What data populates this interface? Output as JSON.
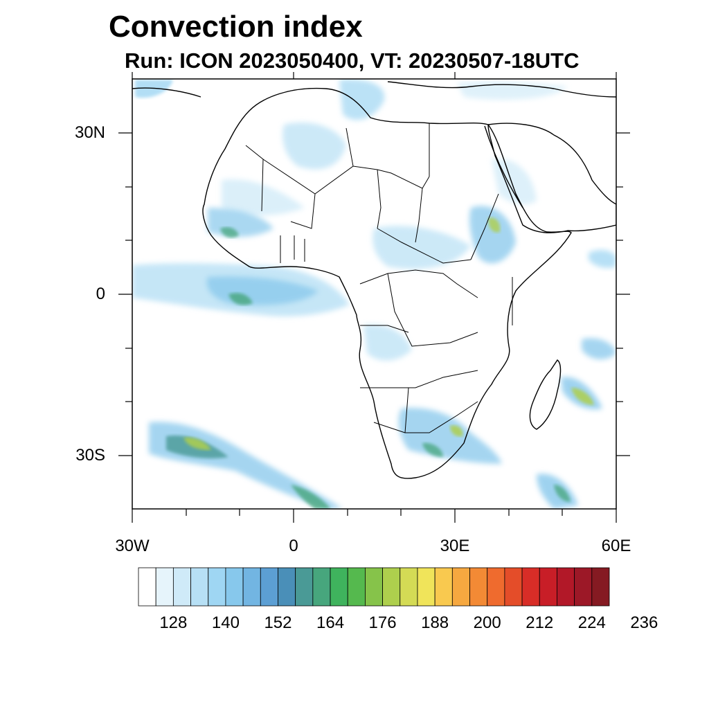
{
  "header": {
    "title": "Convection index",
    "subtitle": "Run: ICON 2023050400,  VT: 20230507-18UTC"
  },
  "map": {
    "lat_labels": [
      "30N",
      "0",
      "30S"
    ],
    "lon_labels": [
      "30W",
      "0",
      "30E",
      "60E"
    ],
    "extent": {
      "lon": [
        -30,
        60
      ],
      "lat": [
        -40,
        40
      ]
    }
  },
  "colorbar": {
    "colors": [
      "#ffffff",
      "#e6f4fb",
      "#cfeaf8",
      "#b7e0f5",
      "#9fd6f3",
      "#87c8ec",
      "#72b5e2",
      "#5c9fd4",
      "#4a8fb8",
      "#4a9a96",
      "#47a67d",
      "#3fb35d",
      "#55b94e",
      "#86c34a",
      "#aecf4d",
      "#d4db55",
      "#f0e45a",
      "#f9c94f",
      "#f6a840",
      "#f38a35",
      "#ef6b2e",
      "#e44d29",
      "#d82d27",
      "#c81e27",
      "#b21828",
      "#9c1827",
      "#851a22"
    ],
    "labels": [
      "128",
      "140",
      "152",
      "164",
      "176",
      "188",
      "200",
      "212",
      "224",
      "236"
    ]
  }
}
